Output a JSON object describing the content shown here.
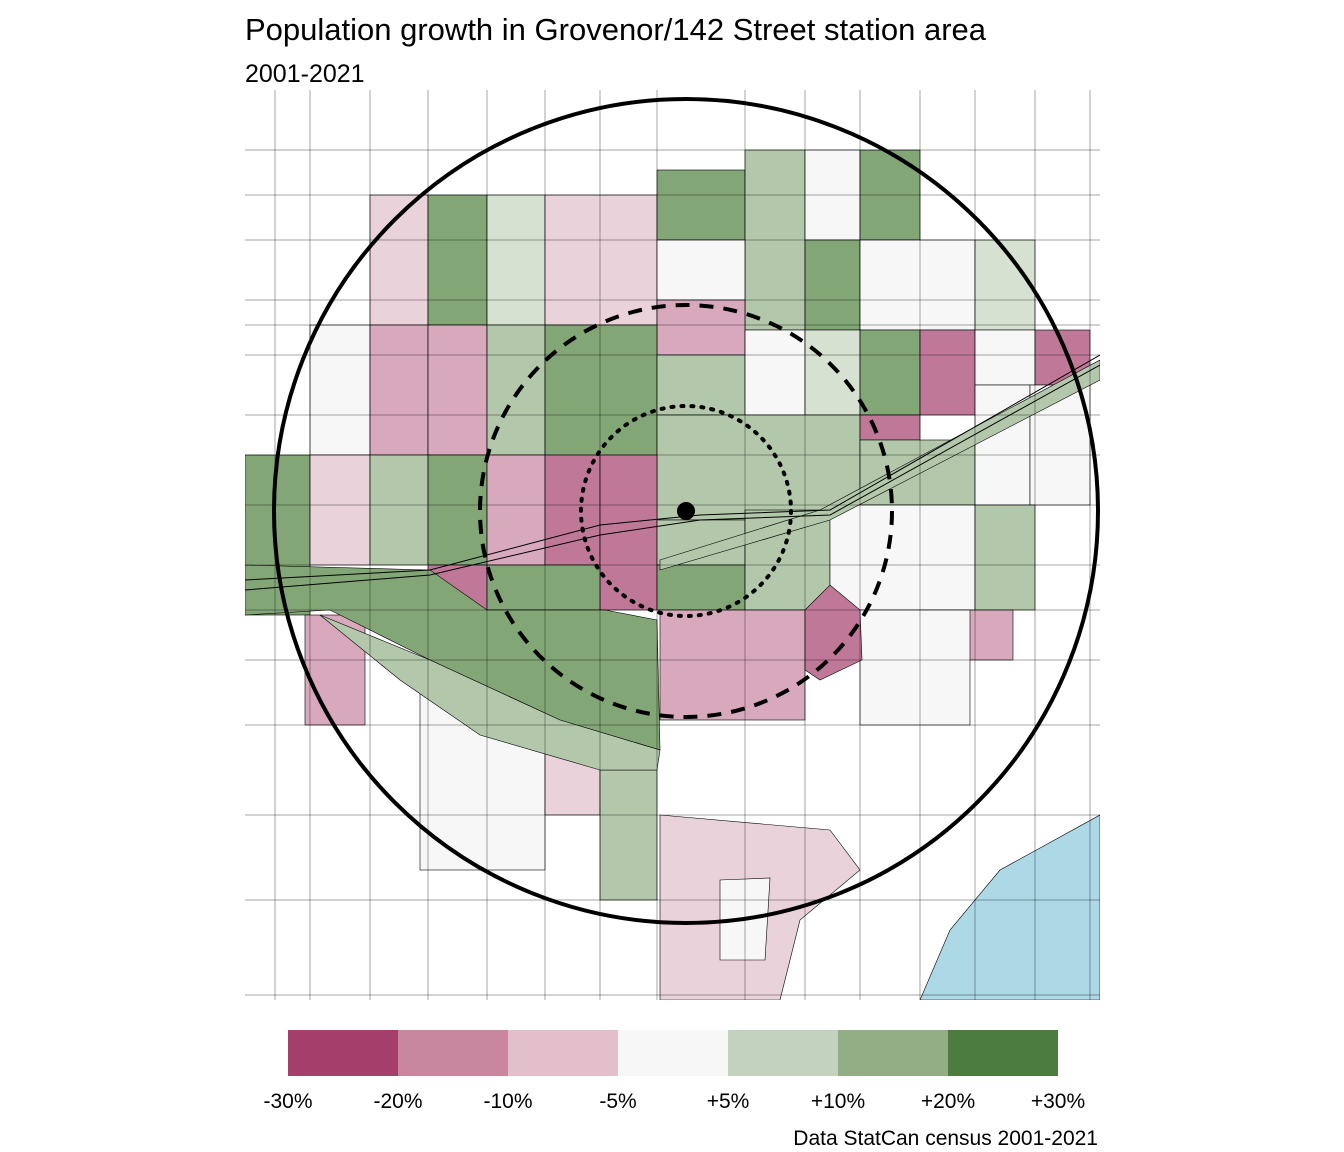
{
  "title": "Population growth in Grovenor/142 Street station area",
  "subtitle": "2001-2021",
  "caption": "Data StatCan census 2001-2021",
  "legend": {
    "labels": [
      "-30%",
      "-20%",
      "-10%",
      "-5%",
      "+5%",
      "+10%",
      "+20%",
      "+30%"
    ],
    "colors": [
      "#a43f6c",
      "#c8879f",
      "#e2bfcb",
      "#f7f7f7",
      "#c2d2bd",
      "#93ad85",
      "#4d7c3f"
    ]
  },
  "map_colors": {
    "dark_pink": "#c07898",
    "mid_pink": "#d8a9bd",
    "light_pink": "#ead2da",
    "white": "#f7f7f7",
    "pale_green": "#d6e1d2",
    "light_green": "#b3c8ab",
    "mid_green": "#83a677",
    "water": "#add8e6"
  },
  "rings": [
    "outer ring solid",
    "middle ring dashed",
    "inner ring dotted"
  ],
  "station": "station-point"
}
